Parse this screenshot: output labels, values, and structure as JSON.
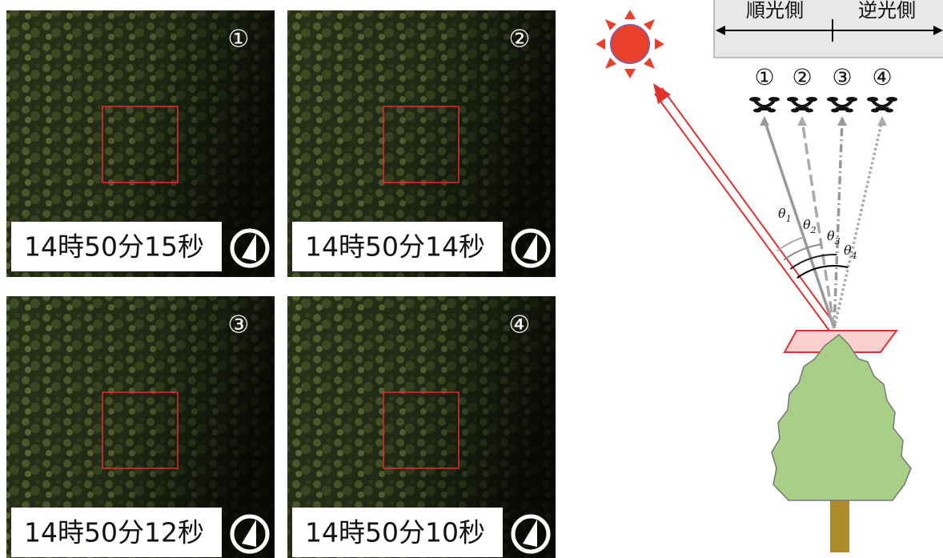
{
  "panels": [
    {
      "number": "①",
      "time": "14時50分15秒"
    },
    {
      "number": "②",
      "time": "14時50分14秒"
    },
    {
      "number": "③",
      "time": "14時50分12秒"
    },
    {
      "number": "④",
      "time": "14時50分10秒"
    }
  ],
  "legend": {
    "front": "順光側",
    "back": "逆光側"
  },
  "drones": [
    "①",
    "②",
    "③",
    "④"
  ],
  "angles": [
    {
      "symbol": "θ",
      "subscript": "1"
    },
    {
      "symbol": "θ",
      "subscript": "2"
    },
    {
      "symbol": "θ",
      "subscript": "3"
    },
    {
      "symbol": "θ",
      "subscript": "4"
    }
  ]
}
